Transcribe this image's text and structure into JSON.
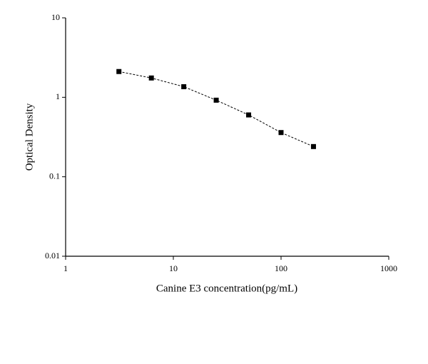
{
  "chart_data": {
    "type": "scatter",
    "x_label": "Canine E3 concentration(pg/mL)",
    "y_label": "Optical Density",
    "x": [
      3.125,
      6.25,
      12.5,
      25,
      50,
      100,
      200
    ],
    "series": [
      {
        "color": "#000000",
        "values": [
          2.11,
          1.75,
          1.36,
          0.92,
          0.6,
          0.36,
          0.24
        ]
      }
    ],
    "xlim": [
      1,
      1000
    ],
    "xticks": [
      1,
      10,
      100,
      1000
    ],
    "ylim": [
      0.01,
      10
    ],
    "yticks": [
      0.01,
      0.1,
      1,
      10
    ],
    "x_log": true,
    "y_log": true,
    "connect_line": "dashed"
  }
}
